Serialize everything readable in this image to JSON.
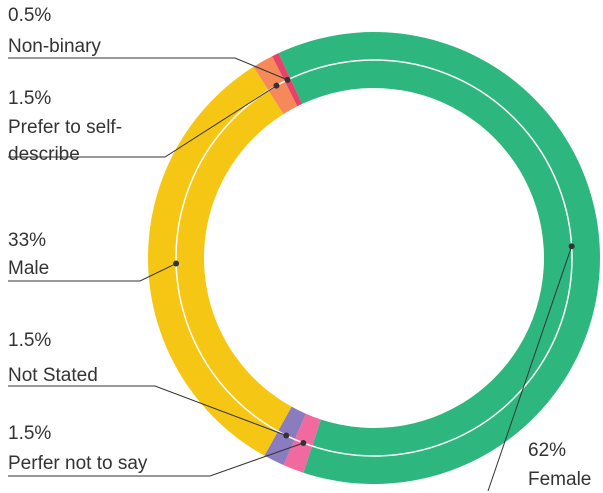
{
  "chart_data": {
    "type": "donut",
    "series": [
      {
        "name": "Female",
        "color": "#2db77f"
      },
      {
        "name": "Perfer not to say",
        "color": "#f06aa0"
      },
      {
        "name": "Not Stated",
        "color": "#8b7cbf"
      },
      {
        "name": "Male",
        "color": "#f6c614"
      },
      {
        "name": "Prefer to self-describe",
        "color": "#f5895a"
      },
      {
        "name": "Non-binary",
        "color": "#e8426a"
      }
    ],
    "values": [
      62,
      1.5,
      1.5,
      33,
      1.5,
      0.5
    ],
    "value_labels": [
      "62%",
      "1.5%",
      "1.5%",
      "33%",
      "1.5%",
      "0.5%"
    ]
  }
}
